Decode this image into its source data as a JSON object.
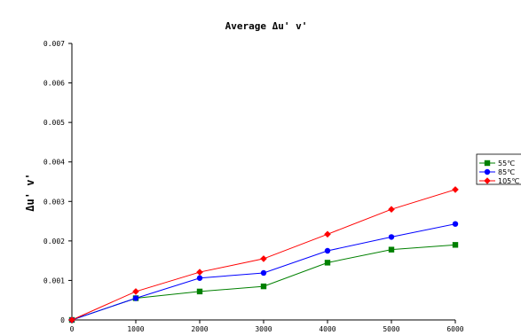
{
  "chart_data": {
    "type": "line",
    "title": "Average Δu' v'",
    "xlabel": "",
    "ylabel": "Δu' v'",
    "x": [
      0,
      1000,
      2000,
      3000,
      4000,
      5000,
      6000
    ],
    "xlim": [
      0,
      6000
    ],
    "ylim": [
      0,
      0.007
    ],
    "xticks": [
      "0",
      "1000",
      "2000",
      "3000",
      "4000",
      "5000",
      "6000"
    ],
    "yticks": [
      "0",
      "0.001",
      "0.002",
      "0.003",
      "0.004",
      "0.005",
      "0.006",
      "0.007"
    ],
    "grid": false,
    "legend_position": "right",
    "series": [
      {
        "name": "55℃",
        "color": "#008000",
        "marker": "square",
        "values": [
          0,
          0.00055,
          0.00072,
          0.00085,
          0.00145,
          0.00178,
          0.0019
        ]
      },
      {
        "name": "85℃",
        "color": "#0000ff",
        "marker": "circle",
        "values": [
          0,
          0.00055,
          0.00106,
          0.00119,
          0.00175,
          0.0021,
          0.00243
        ]
      },
      {
        "name": "105℃",
        "color": "#ff0000",
        "marker": "diamond",
        "values": [
          0,
          0.00072,
          0.00121,
          0.00155,
          0.00217,
          0.0028,
          0.0033
        ]
      }
    ]
  }
}
